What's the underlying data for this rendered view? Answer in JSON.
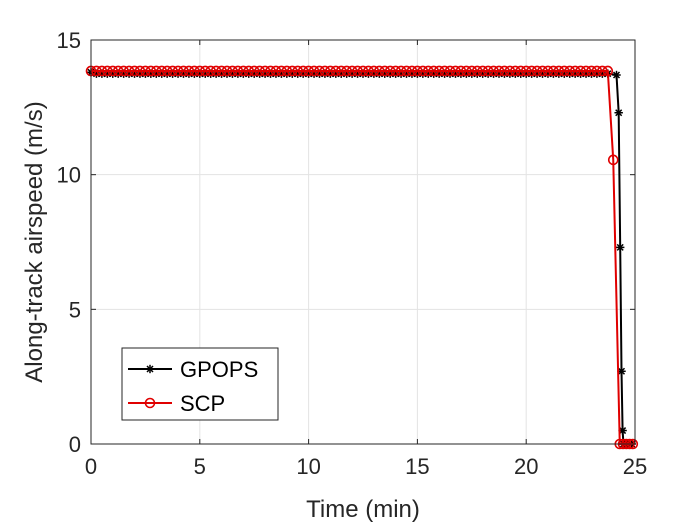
{
  "chart_data": {
    "type": "line",
    "title": "",
    "xlabel": "Time (min)",
    "ylabel": "Along-track airspeed (m/s)",
    "xlim": [
      0,
      25
    ],
    "ylim": [
      0,
      15
    ],
    "xticks": [
      0,
      5,
      10,
      15,
      20,
      25
    ],
    "yticks": [
      0,
      5,
      10,
      15
    ],
    "grid": true,
    "legend": {
      "placement": "bottom-left",
      "entries": [
        "GPOPS",
        "SCP"
      ]
    },
    "series": [
      {
        "name": "GPOPS",
        "color": "#000000",
        "marker": "asterisk",
        "x": [
          0,
          0.25,
          0.5,
          0.75,
          1,
          1.25,
          1.5,
          1.75,
          2,
          2.25,
          2.5,
          2.75,
          3,
          3.25,
          3.5,
          3.75,
          4,
          4.25,
          4.5,
          4.75,
          5,
          5.25,
          5.5,
          5.75,
          6,
          6.25,
          6.5,
          6.75,
          7,
          7.25,
          7.5,
          7.75,
          8,
          8.25,
          8.5,
          8.75,
          9,
          9.25,
          9.5,
          9.75,
          10,
          10.25,
          10.5,
          10.75,
          11,
          11.25,
          11.5,
          11.75,
          12,
          12.25,
          12.5,
          12.75,
          13,
          13.25,
          13.5,
          13.75,
          14,
          14.25,
          14.5,
          14.75,
          15,
          15.25,
          15.5,
          15.75,
          16,
          16.25,
          16.5,
          16.75,
          17,
          17.25,
          17.5,
          17.75,
          18,
          18.25,
          18.5,
          18.75,
          19,
          19.25,
          19.5,
          19.75,
          20,
          20.25,
          20.5,
          20.75,
          21,
          21.25,
          21.5,
          21.75,
          22,
          22.25,
          22.5,
          22.75,
          23,
          23.25,
          23.5,
          23.75,
          24.15,
          24.25,
          24.32,
          24.38,
          24.43,
          24.47,
          24.55,
          24.65,
          24.75,
          24.85
        ],
        "y": [
          13.8,
          13.75,
          13.75,
          13.75,
          13.75,
          13.75,
          13.75,
          13.75,
          13.75,
          13.75,
          13.75,
          13.75,
          13.75,
          13.75,
          13.75,
          13.75,
          13.75,
          13.75,
          13.75,
          13.75,
          13.75,
          13.75,
          13.75,
          13.75,
          13.75,
          13.75,
          13.75,
          13.75,
          13.75,
          13.75,
          13.75,
          13.75,
          13.75,
          13.75,
          13.75,
          13.75,
          13.75,
          13.75,
          13.75,
          13.75,
          13.75,
          13.75,
          13.75,
          13.75,
          13.75,
          13.75,
          13.75,
          13.75,
          13.75,
          13.75,
          13.75,
          13.75,
          13.75,
          13.75,
          13.75,
          13.75,
          13.75,
          13.75,
          13.75,
          13.75,
          13.75,
          13.75,
          13.75,
          13.75,
          13.75,
          13.75,
          13.75,
          13.75,
          13.75,
          13.75,
          13.75,
          13.75,
          13.75,
          13.75,
          13.75,
          13.75,
          13.75,
          13.75,
          13.75,
          13.75,
          13.75,
          13.75,
          13.75,
          13.75,
          13.75,
          13.75,
          13.75,
          13.75,
          13.75,
          13.75,
          13.75,
          13.75,
          13.75,
          13.75,
          13.75,
          13.75,
          13.7,
          12.3,
          7.3,
          2.7,
          0.5,
          0,
          0,
          0,
          0,
          0
        ]
      },
      {
        "name": "SCP",
        "color": "#e00000",
        "marker": "circle",
        "x": [
          0,
          0.25,
          0.5,
          0.75,
          1,
          1.25,
          1.5,
          1.75,
          2,
          2.25,
          2.5,
          2.75,
          3,
          3.25,
          3.5,
          3.75,
          4,
          4.25,
          4.5,
          4.75,
          5,
          5.25,
          5.5,
          5.75,
          6,
          6.25,
          6.5,
          6.75,
          7,
          7.25,
          7.5,
          7.75,
          8,
          8.25,
          8.5,
          8.75,
          9,
          9.25,
          9.5,
          9.75,
          10,
          10.25,
          10.5,
          10.75,
          11,
          11.25,
          11.5,
          11.75,
          12,
          12.25,
          12.5,
          12.75,
          13,
          13.25,
          13.5,
          13.75,
          14,
          14.25,
          14.5,
          14.75,
          15,
          15.25,
          15.5,
          15.75,
          16,
          16.25,
          16.5,
          16.75,
          17,
          17.25,
          17.5,
          17.75,
          18,
          18.25,
          18.5,
          18.75,
          19,
          19.25,
          19.5,
          19.75,
          20,
          20.25,
          20.5,
          20.75,
          21,
          21.25,
          21.5,
          21.75,
          22,
          22.25,
          22.5,
          22.75,
          23,
          23.25,
          23.5,
          23.75,
          24,
          24.3,
          24.45,
          24.6,
          24.75,
          24.9
        ],
        "y": [
          13.85,
          13.85,
          13.85,
          13.85,
          13.85,
          13.85,
          13.85,
          13.85,
          13.85,
          13.85,
          13.85,
          13.85,
          13.85,
          13.85,
          13.85,
          13.85,
          13.85,
          13.85,
          13.85,
          13.85,
          13.85,
          13.85,
          13.85,
          13.85,
          13.85,
          13.85,
          13.85,
          13.85,
          13.85,
          13.85,
          13.85,
          13.85,
          13.85,
          13.85,
          13.85,
          13.85,
          13.85,
          13.85,
          13.85,
          13.85,
          13.85,
          13.85,
          13.85,
          13.85,
          13.85,
          13.85,
          13.85,
          13.85,
          13.85,
          13.85,
          13.85,
          13.85,
          13.85,
          13.85,
          13.85,
          13.85,
          13.85,
          13.85,
          13.85,
          13.85,
          13.85,
          13.85,
          13.85,
          13.85,
          13.85,
          13.85,
          13.85,
          13.85,
          13.85,
          13.85,
          13.85,
          13.85,
          13.85,
          13.85,
          13.85,
          13.85,
          13.85,
          13.85,
          13.85,
          13.85,
          13.85,
          13.85,
          13.85,
          13.85,
          13.85,
          13.85,
          13.85,
          13.85,
          13.85,
          13.85,
          13.85,
          13.85,
          13.85,
          13.85,
          13.85,
          13.85,
          10.55,
          0,
          0,
          0,
          0,
          0
        ]
      }
    ]
  }
}
